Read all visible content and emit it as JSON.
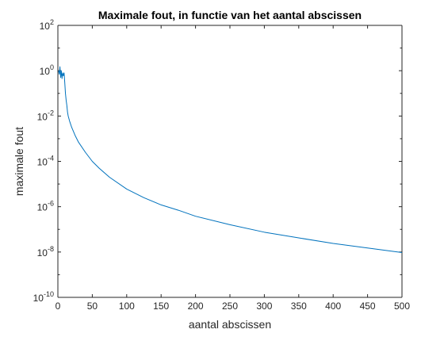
{
  "chart_data": {
    "type": "line",
    "title": "Maximale fout, in functie van het aantal abscissen",
    "xlabel": "aantal abscissen",
    "ylabel": "maximale fout",
    "xlim": [
      0,
      500
    ],
    "ylim": [
      1e-10,
      100
    ],
    "yscale": "log",
    "grid": false,
    "legend": "none",
    "x_ticks": [
      0,
      50,
      100,
      150,
      200,
      250,
      300,
      350,
      400,
      450,
      500
    ],
    "x_tick_labels": [
      "0",
      "50",
      "100",
      "150",
      "200",
      "250",
      "300",
      "350",
      "400",
      "450",
      "500"
    ],
    "y_ticks": [
      {
        "value": 1e-10,
        "base": "10",
        "exp": "-10"
      },
      {
        "value": 1e-08,
        "base": "10",
        "exp": "-8"
      },
      {
        "value": 1e-06,
        "base": "10",
        "exp": "-6"
      },
      {
        "value": 0.0001,
        "base": "10",
        "exp": "-4"
      },
      {
        "value": 0.01,
        "base": "10",
        "exp": "-2"
      },
      {
        "value": 1,
        "base": "10",
        "exp": "0"
      },
      {
        "value": 100,
        "base": "10",
        "exp": "2"
      }
    ],
    "series": [
      {
        "color": "#0072BD",
        "x": [
          1,
          2,
          3,
          4,
          5,
          6,
          7,
          8,
          9,
          10,
          11,
          12,
          13,
          14,
          15,
          17,
          20,
          25,
          30,
          40,
          50,
          60,
          75,
          100,
          125,
          150,
          175,
          200,
          250,
          300,
          350,
          400,
          450,
          500
        ],
        "y": [
          1.0,
          0.7,
          1.5,
          0.5,
          1.0,
          0.45,
          0.8,
          0.6,
          0.8,
          0.3,
          0.1,
          0.05,
          0.03,
          0.015,
          0.01,
          0.006,
          0.0032,
          0.0014,
          0.0007,
          0.00025,
          0.0001,
          5e-05,
          2e-05,
          6e-06,
          2.5e-06,
          1.2e-06,
          7e-07,
          3.8e-07,
          1.6e-07,
          7.5e-08,
          4.2e-08,
          2.4e-08,
          1.5e-08,
          9.5e-09
        ]
      }
    ]
  }
}
